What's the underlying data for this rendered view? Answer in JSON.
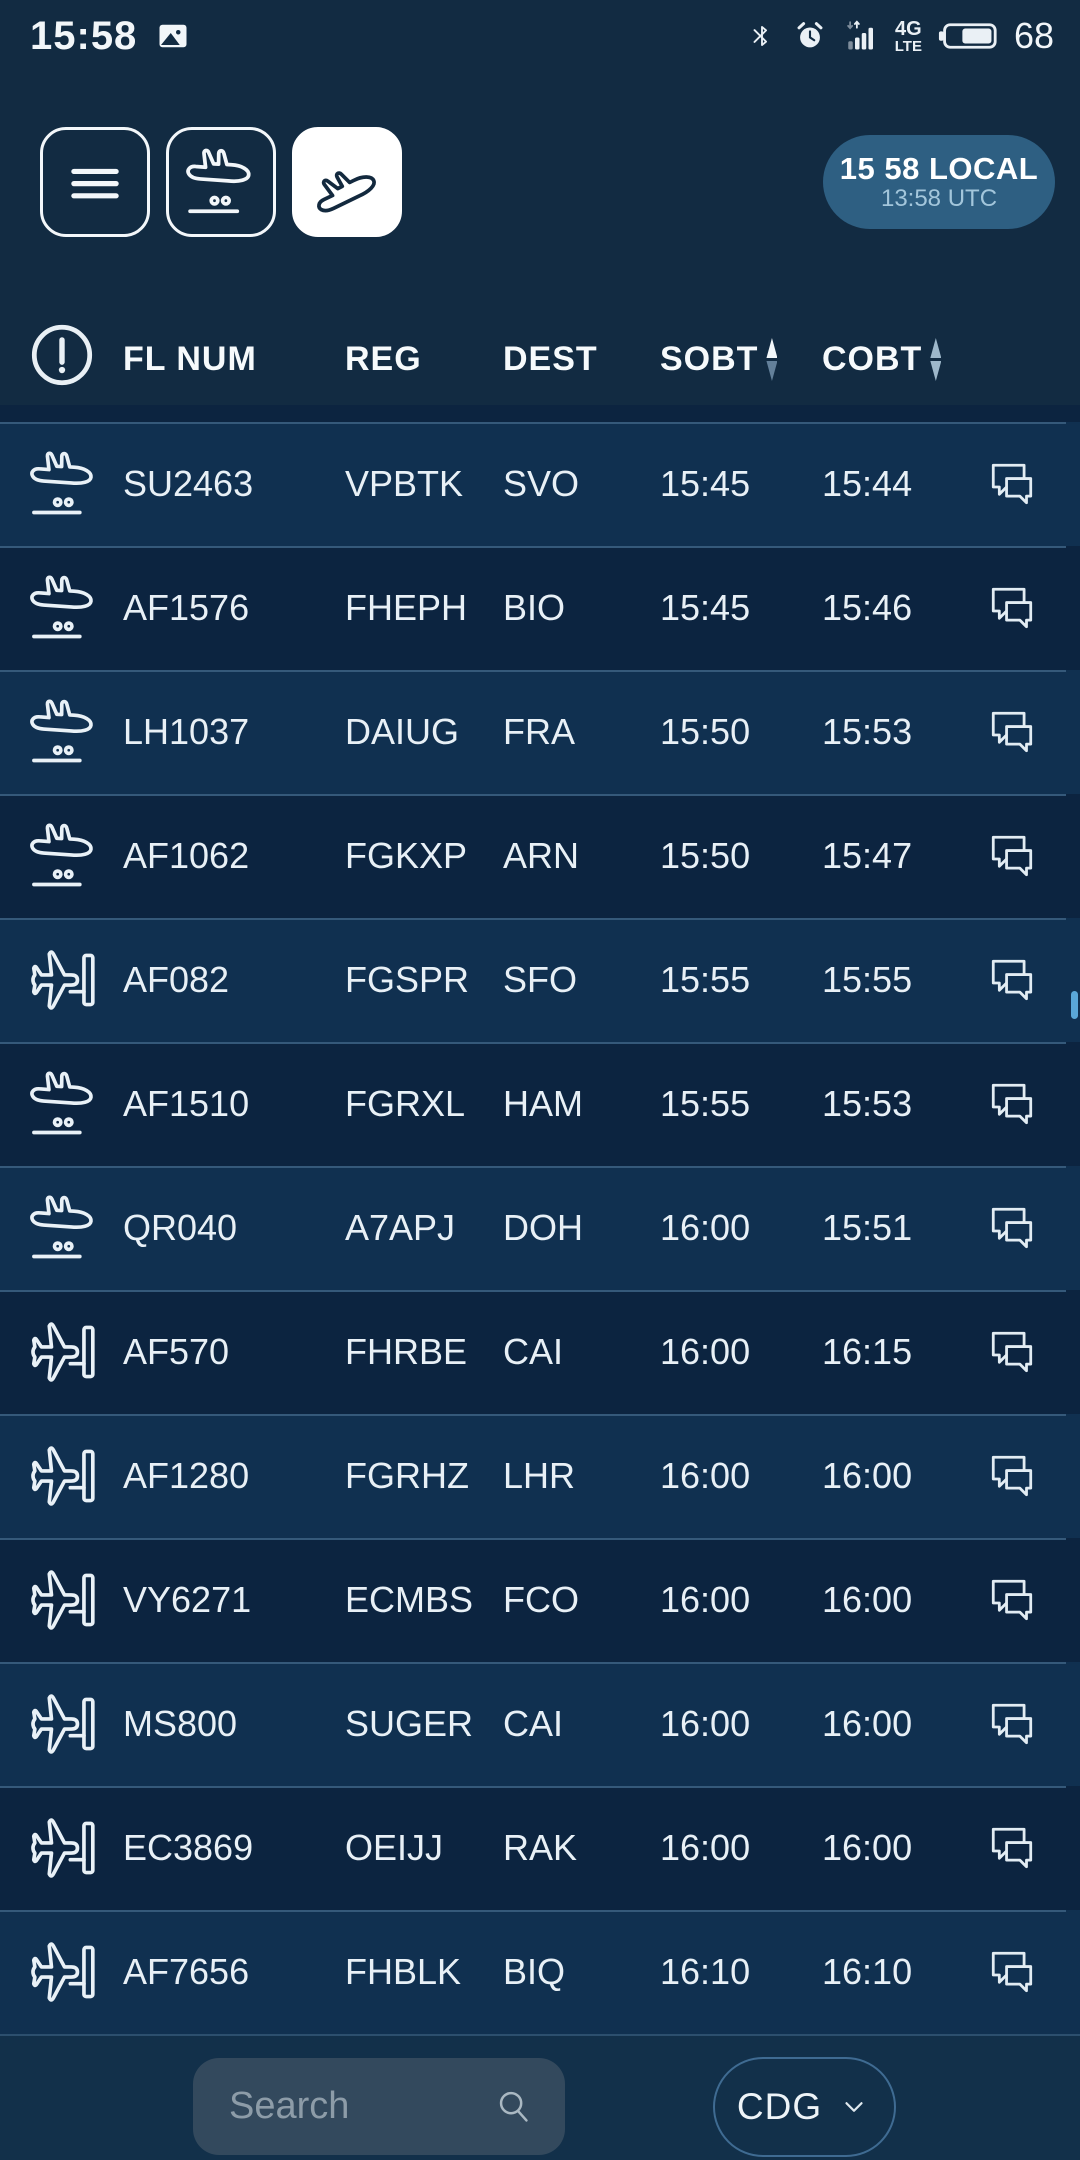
{
  "status_bar": {
    "time": "15:58",
    "network_type_line1": "4G",
    "network_type_line2": "LTE",
    "battery_percent": "68"
  },
  "toolbar": {
    "buttons": [
      {
        "id": "menu",
        "active": false
      },
      {
        "id": "arrivals",
        "active": false
      },
      {
        "id": "departures",
        "active": true
      }
    ],
    "clock_badge": {
      "local": "15 58 LOCAL",
      "utc": "13:58 UTC"
    }
  },
  "table": {
    "columns": [
      {
        "key": "fl",
        "label": "FL NUM"
      },
      {
        "key": "reg",
        "label": "REG"
      },
      {
        "key": "dest",
        "label": "DEST"
      },
      {
        "key": "sobt",
        "label": "SOBT",
        "sort": "asc"
      },
      {
        "key": "cobt",
        "label": "COBT",
        "sort": "none"
      }
    ],
    "rows": [
      {
        "icon": "plane-landing",
        "fl": "SU2463",
        "reg": "VPBTK",
        "dest": "SVO",
        "sobt": "15:45",
        "cobt": "15:44"
      },
      {
        "icon": "plane-landing",
        "fl": "AF1576",
        "reg": "FHEPH",
        "dest": "BIO",
        "sobt": "15:45",
        "cobt": "15:46"
      },
      {
        "icon": "plane-landing",
        "fl": "LH1037",
        "reg": "DAIUG",
        "dest": "FRA",
        "sobt": "15:50",
        "cobt": "15:53"
      },
      {
        "icon": "plane-landing",
        "fl": "AF1062",
        "reg": "FGKXP",
        "dest": "ARN",
        "sobt": "15:50",
        "cobt": "15:47"
      },
      {
        "icon": "plane-at-gate",
        "fl": "AF082",
        "reg": "FGSPR",
        "dest": "SFO",
        "sobt": "15:55",
        "cobt": "15:55"
      },
      {
        "icon": "plane-landing",
        "fl": "AF1510",
        "reg": "FGRXL",
        "dest": "HAM",
        "sobt": "15:55",
        "cobt": "15:53"
      },
      {
        "icon": "plane-landing",
        "fl": "QR040",
        "reg": "A7APJ",
        "dest": "DOH",
        "sobt": "16:00",
        "cobt": "15:51"
      },
      {
        "icon": "plane-at-gate",
        "fl": "AF570",
        "reg": "FHRBE",
        "dest": "CAI",
        "sobt": "16:00",
        "cobt": "16:15"
      },
      {
        "icon": "plane-at-gate",
        "fl": "AF1280",
        "reg": "FGRHZ",
        "dest": "LHR",
        "sobt": "16:00",
        "cobt": "16:00"
      },
      {
        "icon": "plane-at-gate",
        "fl": "VY6271",
        "reg": "ECMBS",
        "dest": "FCO",
        "sobt": "16:00",
        "cobt": "16:00"
      },
      {
        "icon": "plane-at-gate",
        "fl": "MS800",
        "reg": "SUGER",
        "dest": "CAI",
        "sobt": "16:00",
        "cobt": "16:00"
      },
      {
        "icon": "plane-at-gate",
        "fl": "EC3869",
        "reg": "OEIJJ",
        "dest": "RAK",
        "sobt": "16:00",
        "cobt": "16:00"
      },
      {
        "icon": "plane-at-gate",
        "fl": "AF7656",
        "reg": "FHBLK",
        "dest": "BIQ",
        "sobt": "16:10",
        "cobt": "16:10"
      }
    ]
  },
  "footer": {
    "search_placeholder": "Search",
    "airport_selector": {
      "value": "CDG"
    }
  },
  "colors": {
    "background": "#122b42",
    "row_light": "#103050",
    "row_dark": "#0c2440",
    "separator": "#35597a",
    "clock_pill": "#2e5f82",
    "search_box": "#33495d",
    "accent_scrollbar": "#5aa7d8"
  }
}
